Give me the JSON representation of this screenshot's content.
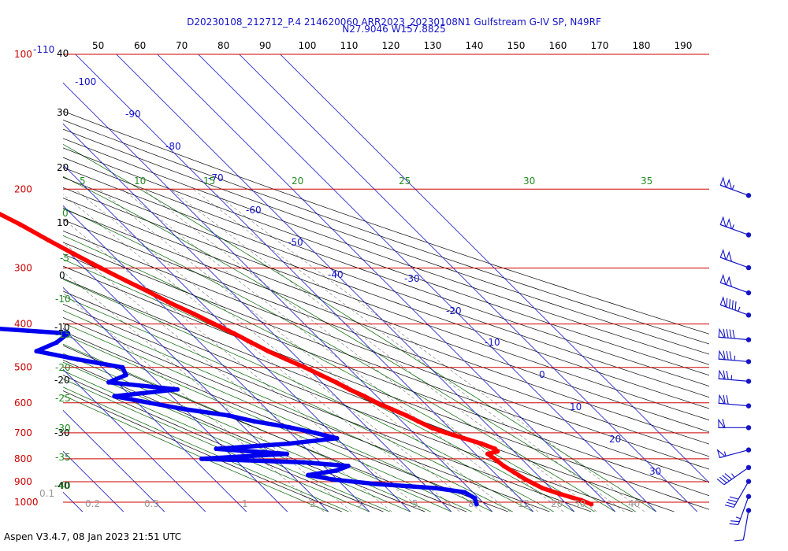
{
  "header": {
    "line1": "D20230108_212712_P.4 214620060 ARR2023_20230108N1 Gulfstream G-IV SP, N49RF",
    "line2": "N27.9046 W157.8825"
  },
  "footer": "Aspen V3.4.7, 08 Jan 2023  21:51 UTC",
  "colors": {
    "isobar": "#cc0000",
    "isotherm": "#1414c8",
    "dry_adiabat": "#000000",
    "moist_adiabat": "#006400",
    "mixing_ratio": "#888888",
    "temperature": "#ff0000",
    "dewpoint": "#0000ee",
    "wind": "#1414c8"
  },
  "chart_data": {
    "type": "skew-t log-p sounding",
    "title": "D20230108_212712_P.4 214620060 ARR2023_20230108N1 Gulfstream G-IV SP, N49RF",
    "subtitle": "N27.9046 W157.8825",
    "y_axis": {
      "scale": "log",
      "unit": "hPa",
      "range": [
        1000,
        100
      ]
    },
    "pressure_labels": [
      {
        "p": 100,
        "text": "100"
      },
      {
        "p": 200,
        "text": "200"
      },
      {
        "p": 300,
        "text": "300"
      },
      {
        "p": 400,
        "text": "400"
      },
      {
        "p": 500,
        "text": "500"
      },
      {
        "p": 600,
        "text": "600"
      },
      {
        "p": 700,
        "text": "700"
      },
      {
        "p": 800,
        "text": "800"
      },
      {
        "p": 900,
        "text": "900"
      },
      {
        "p": 1000,
        "text": "1000"
      }
    ],
    "corner_label": "-110",
    "top_scale_labels": [
      "50",
      "60",
      "70",
      "80",
      "90",
      "100",
      "110",
      "120",
      "130",
      "140",
      "150",
      "160",
      "170",
      "180",
      "190"
    ],
    "left_black_labels": [
      "40",
      "30",
      "20",
      "10",
      "0",
      "-10",
      "-20",
      "-30",
      "-40"
    ],
    "isotherm_labels": [
      {
        "t": -100,
        "text": "-100"
      },
      {
        "t": -90,
        "text": "-90"
      },
      {
        "t": -80,
        "text": "-80"
      },
      {
        "t": -70,
        "text": "-70"
      },
      {
        "t": -60,
        "text": "-60"
      },
      {
        "t": -50,
        "text": "-50"
      },
      {
        "t": -40,
        "text": "-40"
      },
      {
        "t": -30,
        "text": "-30"
      },
      {
        "t": -20,
        "text": "-20"
      },
      {
        "t": -10,
        "text": "-10"
      },
      {
        "t": 0,
        "text": "0"
      },
      {
        "t": 10,
        "text": "10"
      },
      {
        "t": 20,
        "text": "20"
      },
      {
        "t": 30,
        "text": "30"
      }
    ],
    "moist_adiabat_labels": [
      "5",
      "10",
      "15",
      "20",
      "25",
      "30",
      "35"
    ],
    "left_green_labels": [
      "0",
      "-5",
      "-10",
      "-15",
      "-20",
      "-25",
      "-30",
      "-35",
      "-40"
    ],
    "mixing_ratio_labels": [
      "0.1",
      "0.2",
      "0.5",
      "1",
      "2",
      "3",
      "5",
      "8",
      "12",
      "20",
      "30",
      "40"
    ],
    "temperature": [
      {
        "p": 200,
        "t": -52
      },
      {
        "p": 210,
        "t": -51
      },
      {
        "p": 220,
        "t": -49
      },
      {
        "p": 240,
        "t": -45
      },
      {
        "p": 260,
        "t": -42
      },
      {
        "p": 280,
        "t": -39
      },
      {
        "p": 300,
        "t": -36
      },
      {
        "p": 320,
        "t": -33
      },
      {
        "p": 340,
        "t": -30
      },
      {
        "p": 360,
        "t": -27.5
      },
      {
        "p": 380,
        "t": -24.5
      },
      {
        "p": 400,
        "t": -22
      },
      {
        "p": 420,
        "t": -19.5
      },
      {
        "p": 440,
        "t": -17.5
      },
      {
        "p": 460,
        "t": -15.5
      },
      {
        "p": 480,
        "t": -13
      },
      {
        "p": 500,
        "t": -10.5
      },
      {
        "p": 520,
        "t": -8.5
      },
      {
        "p": 540,
        "t": -6.5
      },
      {
        "p": 560,
        "t": -5
      },
      {
        "p": 580,
        "t": -3
      },
      {
        "p": 600,
        "t": -1.5
      },
      {
        "p": 620,
        "t": 0.5
      },
      {
        "p": 640,
        "t": 2.5
      },
      {
        "p": 660,
        "t": 4
      },
      {
        "p": 680,
        "t": 5.5
      },
      {
        "p": 700,
        "t": 8
      },
      {
        "p": 720,
        "t": 11
      },
      {
        "p": 740,
        "t": 14
      },
      {
        "p": 760,
        "t": 16
      },
      {
        "p": 770,
        "t": 16
      },
      {
        "p": 780,
        "t": 13
      },
      {
        "p": 800,
        "t": 13.5
      },
      {
        "p": 830,
        "t": 14
      },
      {
        "p": 860,
        "t": 15
      },
      {
        "p": 890,
        "t": 16
      },
      {
        "p": 910,
        "t": 17
      },
      {
        "p": 930,
        "t": 18
      },
      {
        "p": 960,
        "t": 21
      },
      {
        "p": 990,
        "t": 24.5
      },
      {
        "p": 1010,
        "t": 26
      }
    ],
    "dewpoint": [
      {
        "p": 230,
        "t": -85
      },
      {
        "p": 245,
        "t": -82
      },
      {
        "p": 260,
        "t": -80
      },
      {
        "p": 275,
        "t": -73
      },
      {
        "p": 290,
        "t": -66
      },
      {
        "p": 300,
        "t": -72
      },
      {
        "p": 310,
        "t": -68
      },
      {
        "p": 320,
        "t": -82
      },
      {
        "p": 330,
        "t": -75
      },
      {
        "p": 340,
        "t": -70
      },
      {
        "p": 360,
        "t": -82
      },
      {
        "p": 375,
        "t": -86
      },
      {
        "p": 390,
        "t": -90
      },
      {
        "p": 400,
        "t": -92
      },
      {
        "p": 420,
        "t": -60
      },
      {
        "p": 440,
        "t": -65
      },
      {
        "p": 460,
        "t": -72
      },
      {
        "p": 480,
        "t": -64
      },
      {
        "p": 500,
        "t": -55
      },
      {
        "p": 520,
        "t": -56
      },
      {
        "p": 540,
        "t": -62
      },
      {
        "p": 560,
        "t": -47
      },
      {
        "p": 580,
        "t": -64
      },
      {
        "p": 600,
        "t": -57
      },
      {
        "p": 620,
        "t": -50
      },
      {
        "p": 640,
        "t": -41
      },
      {
        "p": 660,
        "t": -36
      },
      {
        "p": 680,
        "t": -29
      },
      {
        "p": 700,
        "t": -24
      },
      {
        "p": 720,
        "t": -20
      },
      {
        "p": 740,
        "t": -33
      },
      {
        "p": 760,
        "t": -52
      },
      {
        "p": 780,
        "t": -36
      },
      {
        "p": 800,
        "t": -58
      },
      {
        "p": 815,
        "t": -34
      },
      {
        "p": 830,
        "t": -24
      },
      {
        "p": 850,
        "t": -28
      },
      {
        "p": 870,
        "t": -36
      },
      {
        "p": 890,
        "t": -31
      },
      {
        "p": 910,
        "t": -22
      },
      {
        "p": 930,
        "t": -8
      },
      {
        "p": 950,
        "t": -2
      },
      {
        "p": 980,
        "t": -1
      },
      {
        "p": 1010,
        "t": -2
      }
    ],
    "wind_barbs": [
      {
        "p": 200,
        "dir": 290,
        "spd": 105
      },
      {
        "p": 245,
        "dir": 290,
        "spd": 105
      },
      {
        "p": 290,
        "dir": 290,
        "spd": 100
      },
      {
        "p": 330,
        "dir": 290,
        "spd": 100
      },
      {
        "p": 370,
        "dir": 290,
        "spd": 95
      },
      {
        "p": 420,
        "dir": 275,
        "spd": 90
      },
      {
        "p": 470,
        "dir": 275,
        "spd": 85
      },
      {
        "p": 520,
        "dir": 275,
        "spd": 75
      },
      {
        "p": 590,
        "dir": 275,
        "spd": 70
      },
      {
        "p": 660,
        "dir": 270,
        "spd": 60
      },
      {
        "p": 740,
        "dir": 255,
        "spd": 55
      },
      {
        "p": 810,
        "dir": 235,
        "spd": 45
      },
      {
        "p": 870,
        "dir": 210,
        "spd": 40
      },
      {
        "p": 940,
        "dir": 200,
        "spd": 25
      },
      {
        "p": 1010,
        "dir": 190,
        "spd": 10
      }
    ]
  }
}
